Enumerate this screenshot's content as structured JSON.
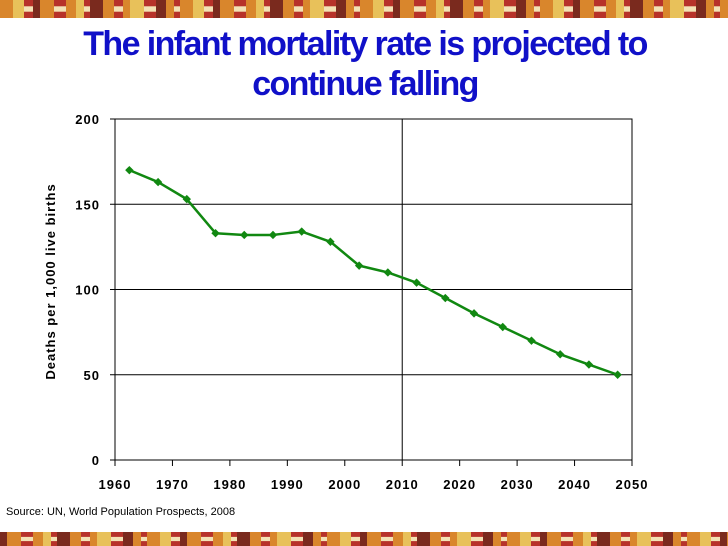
{
  "slide": {
    "title": "The infant mortality rate is projected to continue falling",
    "source": "Source: UN, World Population Prospects, 2008"
  },
  "colors": {
    "title": "#1010c8",
    "series": "#118811",
    "band_red": "#b7322a",
    "band_orange": "#d9862c",
    "band_gold": "#e8c15a"
  },
  "chart_data": {
    "type": "line",
    "title": "",
    "xlabel": "",
    "ylabel": "Deaths per 1,000 live births",
    "xlim": [
      1960,
      2050
    ],
    "ylim": [
      0,
      200
    ],
    "xticks": [
      1960,
      1970,
      1980,
      1990,
      2000,
      2010,
      2020,
      2030,
      2040,
      2050
    ],
    "yticks": [
      0,
      50,
      100,
      150,
      200
    ],
    "grid": "horizontal",
    "reference_line_x": 2010,
    "marker": "diamond",
    "series": [
      {
        "name": "",
        "x": [
          1962.5,
          1967.5,
          1972.5,
          1977.5,
          1982.5,
          1987.5,
          1992.5,
          1997.5,
          2002.5,
          2007.5,
          2012.5,
          2017.5,
          2022.5,
          2027.5,
          2032.5,
          2037.5,
          2042.5,
          2047.5
        ],
        "values": [
          170,
          163,
          153,
          133,
          132,
          132,
          134,
          128,
          114,
          110,
          104,
          95,
          86,
          78,
          70,
          62,
          56,
          50
        ]
      }
    ]
  }
}
